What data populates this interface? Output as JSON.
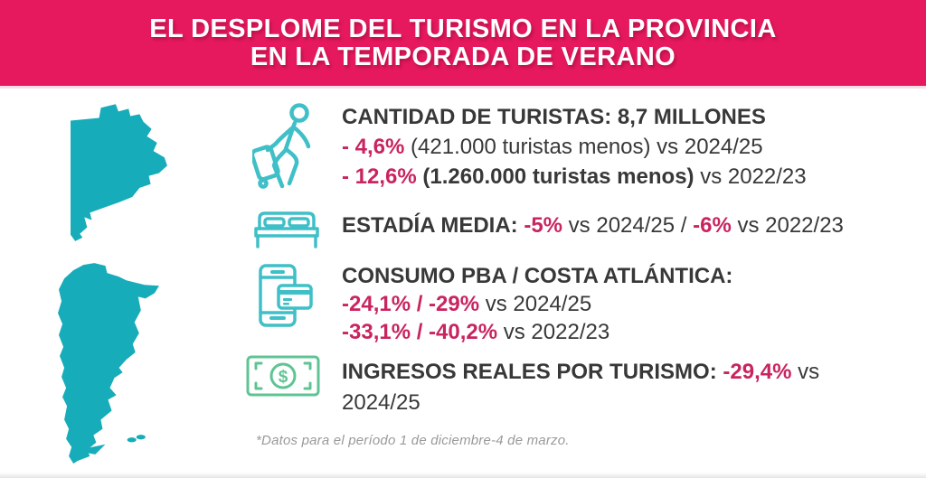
{
  "header": {
    "title_line1": "EL DESPLOME DEL TURISMO EN LA PROVINCIA",
    "title_line2": "EN LA TEMPORADA DE VERANO"
  },
  "colors": {
    "banner_pink": "#E6195E",
    "stat_pink": "#C9245F",
    "map_teal": "#16ACB9",
    "icon_teal": "#3FBFC7",
    "money_green": "#5FC493",
    "text_dark": "#383838",
    "footnote_gray": "#9A9A9A"
  },
  "maps": [
    {
      "name": "buenos-aires-province-map"
    },
    {
      "name": "argentina-map"
    }
  ],
  "stats": [
    {
      "icon": "traveler-luggage-icon",
      "lines": [
        [
          {
            "text": "CANTIDAD DE TURISTAS: 8,7 MILLONES",
            "style": "bold-dark"
          }
        ],
        [
          {
            "text": "- 4,6%",
            "style": "pink"
          },
          {
            "text": " (421.000 turistas menos) vs 2024/25",
            "style": "regular"
          }
        ],
        [
          {
            "text": "- 12,6%",
            "style": "pink"
          },
          {
            "text": " (1.260.000 turistas menos)",
            "style": "bold-dark"
          },
          {
            "text": " vs 2022/23",
            "style": "regular"
          }
        ]
      ]
    },
    {
      "icon": "bed-icon",
      "lines": [
        [
          {
            "text": "ESTADÍA MEDIA: ",
            "style": "bold-dark"
          },
          {
            "text": "-5%",
            "style": "pink"
          },
          {
            "text": " vs 2024/25 / ",
            "style": "regular"
          },
          {
            "text": "-6%",
            "style": "pink"
          },
          {
            "text": " vs 2022/23",
            "style": "regular"
          }
        ]
      ]
    },
    {
      "icon": "mobile-payment-icon",
      "lines": [
        [
          {
            "text": "CONSUMO PBA / COSTA ATLÁNTICA:",
            "style": "bold-dark"
          }
        ],
        [
          {
            "text": "-24,1% / -29%",
            "style": "pink"
          },
          {
            "text": " vs 2024/25",
            "style": "regular"
          }
        ],
        [
          {
            "text": "-33,1% / -40,2%",
            "style": "pink"
          },
          {
            "text": " vs 2022/23",
            "style": "regular"
          }
        ]
      ]
    },
    {
      "icon": "money-icon",
      "lines": [
        [
          {
            "text": "INGRESOS REALES POR TURISMO: ",
            "style": "bold-dark"
          },
          {
            "text": "-29,4%",
            "style": "pink"
          },
          {
            "text": " vs",
            "style": "regular"
          }
        ],
        [
          {
            "text": "2024/25",
            "style": "regular"
          }
        ]
      ]
    }
  ],
  "footnote": "*Datos para el período 1 de diciembre-4 de marzo."
}
